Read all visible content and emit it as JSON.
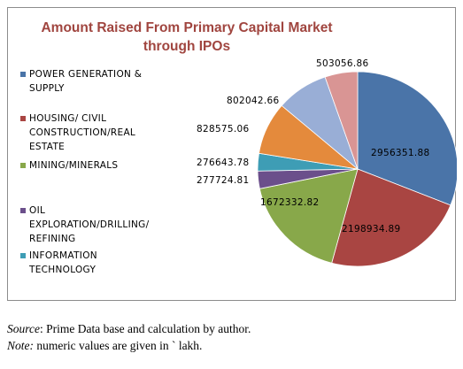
{
  "chart_data": {
    "type": "pie",
    "title_lines": [
      "Amount Raised From Primary Capital Market",
      "through IPOs"
    ],
    "series": [
      {
        "name": "POWER GENERATION & SUPPLY",
        "legend_lines": [
          "POWER GENERATION &",
          "SUPPLY"
        ],
        "value": 2956351.88,
        "label": "2956351.88",
        "color": "#4a74a8"
      },
      {
        "name": "HOUSING/ CIVIL CONSTRUCTION/REAL ESTATE",
        "legend_lines": [
          "HOUSING/ CIVIL",
          "CONSTRUCTION/REAL",
          "ESTATE"
        ],
        "value": 2198934.89,
        "label": "2198934.89",
        "color": "#a94542"
      },
      {
        "name": "MINING/MINERALS",
        "legend_lines": [
          "MINING/MINERALS"
        ],
        "value": 1672332.82,
        "label": "1672332.82",
        "color": "#88a84a"
      },
      {
        "name": "OIL EXPLORATION/DRILLING/ REFINING",
        "legend_lines": [
          "OIL",
          "EXPLORATION/DRILLING/",
          "REFINING"
        ],
        "value": 277724.81,
        "label": "277724.81",
        "color": "#6b4f8b"
      },
      {
        "name": "INFORMATION TECHNOLOGY",
        "legend_lines": [
          "INFORMATION",
          "TECHNOLOGY"
        ],
        "value": 276643.78,
        "label": "276643.78",
        "color": "#3e9db5"
      },
      {
        "name": "",
        "legend_lines": [],
        "value": 828575.06,
        "label": "828575.06",
        "color": "#e48a3c"
      },
      {
        "name": "",
        "legend_lines": [],
        "value": 802042.66,
        "label": "802042.66",
        "color": "#99aed6"
      },
      {
        "name": "",
        "legend_lines": [],
        "value": 503056.86,
        "label": "503056.86",
        "color": "#d99594"
      }
    ],
    "legend_position": "left"
  },
  "captions": {
    "source_label": "Source",
    "source_text": ": Prime Data base and calculation by author.",
    "note_label": "Note:",
    "note_text": " numeric values are given in ` lakh."
  }
}
